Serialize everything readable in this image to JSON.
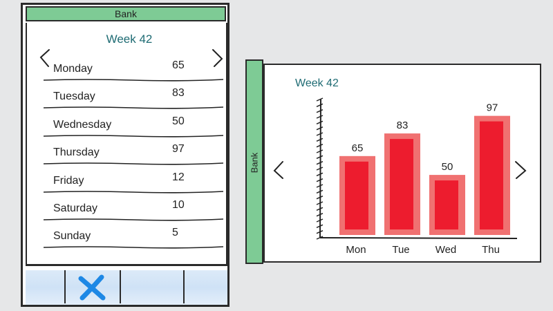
{
  "phone": {
    "header": "Bank",
    "week_title": "Week 42",
    "days": [
      {
        "name": "Monday",
        "value": "65"
      },
      {
        "name": "Tuesday",
        "value": "83"
      },
      {
        "name": "Wednesday",
        "value": "50"
      },
      {
        "name": "Thursday",
        "value": "97"
      },
      {
        "name": "Friday",
        "value": "12"
      },
      {
        "name": "Saturday",
        "value": "10"
      },
      {
        "name": "Sunday",
        "value": "5"
      }
    ],
    "toolbar": {
      "close_icon": "close-icon"
    },
    "colors": {
      "header_bg": "#7ecb95",
      "title": "#1e6b73",
      "toolbar_bg": "#d5e6f7",
      "close_icon": "#1e88e5"
    }
  },
  "tablet": {
    "side_label": "Bank",
    "week_title": "Week 42",
    "nav": {
      "prev_icon": "chevron-left-icon",
      "next_icon": "chevron-right-icon"
    }
  },
  "chart_data": {
    "type": "bar",
    "categories": [
      "Mon",
      "Tue",
      "Wed",
      "Thu"
    ],
    "values": [
      65,
      83,
      50,
      97
    ],
    "data_labels": [
      "65",
      "83",
      "50",
      "97"
    ],
    "title": "Week 42",
    "xlabel": "",
    "ylabel": "",
    "ylim": [
      0,
      110
    ],
    "grid": false,
    "bar_color": "#ed1c2e",
    "bar_outline_color": "#f07171"
  }
}
